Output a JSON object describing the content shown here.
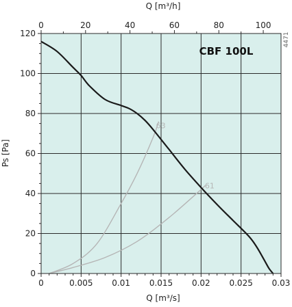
{
  "chart_data": {
    "type": "line",
    "title": "CBF 100L",
    "side_label": "4471",
    "xlabel_bottom": "Q [m³/s]",
    "xlabel_top": "Q [m³/h]",
    "ylabel": "Ps [Pa]",
    "xlim": [
      0,
      0.03
    ],
    "ylim": [
      0,
      120
    ],
    "x2lim": [
      0,
      108
    ],
    "x_ticks": [
      "0",
      "0.005",
      "0.01",
      "0.015",
      "0.02",
      "0.025",
      "0.03"
    ],
    "x2_ticks": [
      "0",
      "20",
      "40",
      "60",
      "80",
      "100"
    ],
    "y_ticks": [
      "0",
      "20",
      "40",
      "60",
      "80",
      "100",
      "120"
    ],
    "grid": true,
    "background_color": "#d9efec",
    "fan_curve": {
      "x": [
        0,
        0.002,
        0.004,
        0.005,
        0.006,
        0.008,
        0.01,
        0.011,
        0.012,
        0.013,
        0.014,
        0.016,
        0.018,
        0.02,
        0.022,
        0.024,
        0.026,
        0.027,
        0.028,
        0.0285,
        0.029
      ],
      "y": [
        116,
        111,
        103,
        99,
        94,
        87,
        84,
        82.5,
        80,
        76.5,
        72,
        62,
        52,
        43,
        34.5,
        26.5,
        18.5,
        13,
        6,
        2.5,
        0
      ]
    },
    "system_curves": [
      {
        "name": "63",
        "x": [
          0.001,
          0.004,
          0.007,
          0.01,
          0.012,
          0.014,
          0.0147
        ],
        "y": [
          0,
          5,
          15,
          35,
          50,
          68,
          76
        ],
        "label_at": [
          0.0142,
          74
        ]
      },
      {
        "name": "61",
        "x": [
          0.001,
          0.004,
          0.008,
          0.012,
          0.016,
          0.02,
          0.0205
        ],
        "y": [
          0,
          3,
          8,
          16,
          28,
          42,
          44
        ],
        "label_at": [
          0.0203,
          44
        ]
      }
    ],
    "colors": {
      "fan": "#1a1a1a",
      "system": "#b5b5b5",
      "grid": "#2a2a2a"
    }
  }
}
